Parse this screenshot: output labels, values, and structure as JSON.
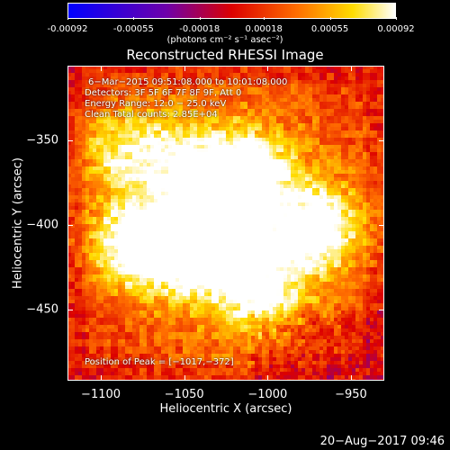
{
  "chart_data": {
    "type": "heatmap",
    "title": "Reconstructed RHESSI Image",
    "xlabel": "Heliocentric X (arcsec)",
    "ylabel": "Heliocentric Y (arcsec)",
    "xlim": [
      -1120,
      -930
    ],
    "ylim": [
      -492,
      -306
    ],
    "xticks": [
      -1100,
      -1050,
      -1000,
      -950
    ],
    "xtick_labels": [
      "−1100",
      "−1050",
      "−1000",
      "−950"
    ],
    "yticks": [
      -350,
      -400,
      -450
    ],
    "ytick_labels": [
      "−350",
      "−400",
      "−450"
    ],
    "colorbar": {
      "range": [
        -0.00092,
        0.00092
      ],
      "ticks": [
        -0.00092,
        -0.00055,
        -0.00018,
        0.00018,
        0.00055,
        0.00092
      ],
      "tick_labels": [
        "-0.00092",
        "-0.00055",
        "-0.00018",
        "0.00018",
        "0.00055",
        "0.00092"
      ],
      "units": "(photons cm⁻² s⁻¹ asec⁻²)",
      "colormap": "blue-purple-red-orange-yellow-white"
    },
    "peak": [
      -1017,
      -372
    ],
    "sources": [
      {
        "x": -1017,
        "y": -372,
        "strength": 1.0
      },
      {
        "x": -1030,
        "y": -400,
        "strength": 0.85
      },
      {
        "x": -1080,
        "y": -412,
        "strength": 0.8
      },
      {
        "x": -1045,
        "y": -415,
        "strength": 0.7
      },
      {
        "x": -970,
        "y": -402,
        "strength": 0.75
      },
      {
        "x": -1005,
        "y": -440,
        "strength": 0.6
      },
      {
        "x": -1060,
        "y": -360,
        "strength": 0.45
      },
      {
        "x": -1090,
        "y": -355,
        "strength": 0.45
      }
    ]
  },
  "annotations": {
    "time": "6−Mar−2015 09:51:08.000 to 10:01:08.000",
    "detectors": "Detectors: 3F 5F 6F 7F 8F 9F, Att 0",
    "energy": "Energy Range: 12.0 − 25.0 keV",
    "method": "Clean     Total counts: 2.85E+04",
    "peak": "Position of Peak = [−1017,−372]"
  },
  "footer": "20−Aug−2017 09:46",
  "colors": {
    "background": "#000000",
    "text": "#ffffff"
  }
}
